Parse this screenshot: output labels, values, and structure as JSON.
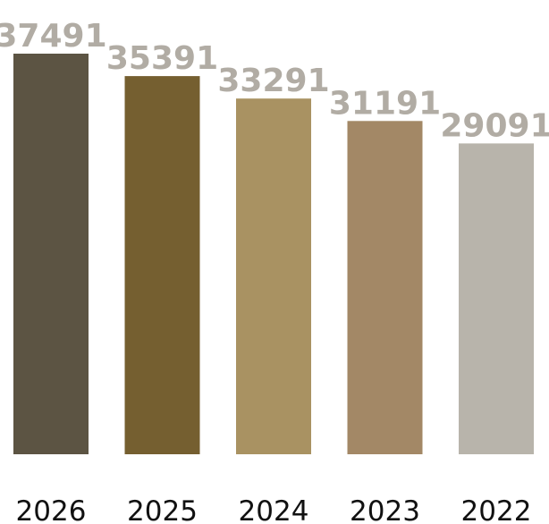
{
  "chart_data": {
    "type": "bar",
    "categories": [
      "2026",
      "2025",
      "2024",
      "2023",
      "2022"
    ],
    "values": [
      37491,
      35391,
      33291,
      31191,
      29091
    ],
    "colors": [
      "#5c5443",
      "#755f30",
      "#a99262",
      "#a38866",
      "#b8b4ab"
    ],
    "value_label_color": "#b1aca4",
    "title": "",
    "xlabel": "",
    "ylabel": "",
    "ylim": [
      0,
      40000
    ],
    "grid": false,
    "legend": "none"
  }
}
